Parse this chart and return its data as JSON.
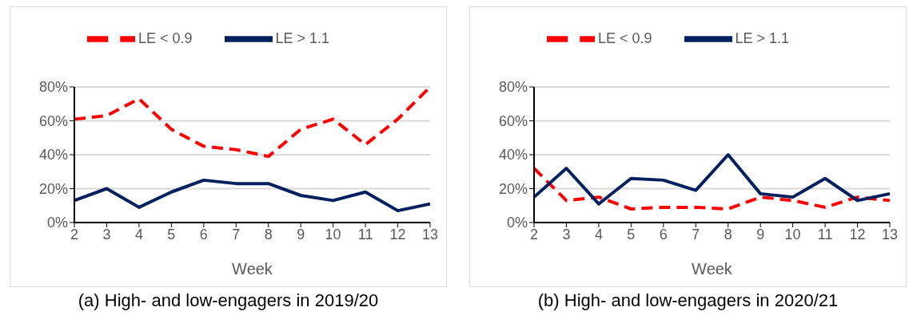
{
  "chart_data": [
    {
      "type": "line",
      "title": "(a)  High- and low-engagers in 2019/20",
      "xlabel": "Week",
      "categories": [
        "2",
        "3",
        "4",
        "5",
        "6",
        "7",
        "8",
        "9",
        "10",
        "11",
        "12",
        "13"
      ],
      "series": [
        {
          "name": "LE < 0.9",
          "color": "#ff0000",
          "line_style": "dashed",
          "values": [
            61,
            63,
            73,
            55,
            45,
            43,
            39,
            55,
            61,
            46,
            61,
            80
          ]
        },
        {
          "name": "LE > 1.1",
          "color": "#002060",
          "line_style": "solid",
          "values": [
            13,
            20,
            9,
            18,
            25,
            23,
            23,
            16,
            13,
            18,
            7,
            11
          ]
        }
      ],
      "ylim": [
        0,
        80
      ],
      "yticks": [
        {
          "value": 0,
          "label": "0%"
        },
        {
          "value": 20,
          "label": "20%"
        },
        {
          "value": 40,
          "label": "40%"
        },
        {
          "value": 60,
          "label": "60%"
        },
        {
          "value": 80,
          "label": "80%"
        }
      ],
      "grid": "y",
      "legend": "top",
      "marker": "none"
    },
    {
      "type": "line",
      "title": "(b)  High- and low-engagers in 2020/21",
      "xlabel": "Week",
      "categories": [
        "2",
        "3",
        "4",
        "5",
        "6",
        "7",
        "8",
        "9",
        "10",
        "11",
        "12",
        "13"
      ],
      "series": [
        {
          "name": "LE < 0.9",
          "color": "#ff0000",
          "line_style": "dashed",
          "values": [
            32,
            13,
            15,
            8,
            9,
            9,
            8,
            15,
            13,
            9,
            15,
            13
          ]
        },
        {
          "name": "LE > 1.1",
          "color": "#002060",
          "line_style": "solid",
          "values": [
            15,
            32,
            11,
            26,
            25,
            19,
            40,
            17,
            15,
            26,
            13,
            17
          ]
        }
      ],
      "ylim": [
        0,
        80
      ],
      "yticks": [
        {
          "value": 0,
          "label": "0%"
        },
        {
          "value": 20,
          "label": "20%"
        },
        {
          "value": 40,
          "label": "40%"
        },
        {
          "value": 60,
          "label": "60%"
        },
        {
          "value": 80,
          "label": "80%"
        }
      ],
      "grid": "y",
      "legend": "top",
      "marker": "none"
    }
  ]
}
